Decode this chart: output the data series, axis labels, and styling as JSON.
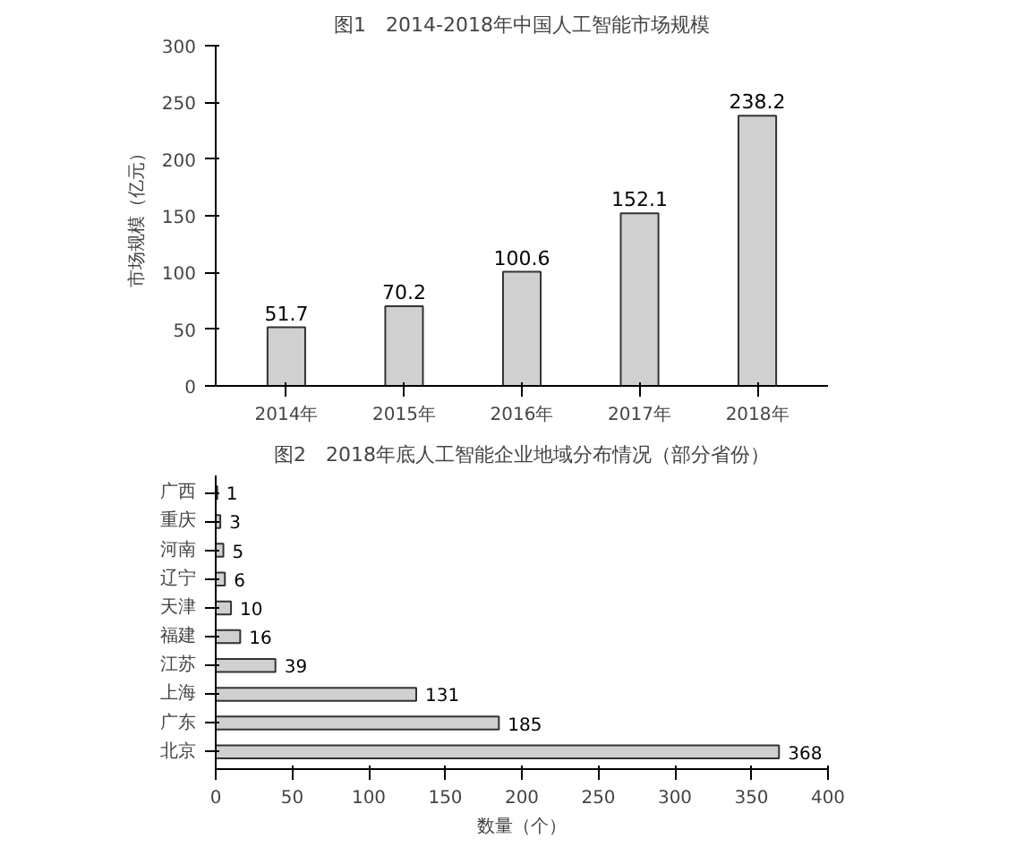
{
  "chart_data": [
    {
      "type": "bar",
      "title": "图1　2014-2018年中国人工智能市场规模",
      "ylabel": "市场规模（亿元）",
      "categories": [
        "2014年",
        "2015年",
        "2016年",
        "2017年",
        "2018年"
      ],
      "values": [
        51.7,
        70.2,
        100.6,
        152.1,
        238.2
      ],
      "color": "#d0d0d0",
      "ylim": [
        0,
        300
      ],
      "yticks": [
        0,
        50,
        100,
        150,
        200,
        250,
        300
      ],
      "data_labels": true,
      "grid": false
    },
    {
      "type": "bar",
      "orientation": "horizontal",
      "title": "图2　2018年底人工智能企业地域分布情况（部分省份）",
      "xlabel": "数量（个）",
      "categories": [
        "广西",
        "重庆",
        "河南",
        "辽宁",
        "天津",
        "福建",
        "江苏",
        "上海",
        "广东",
        "北京"
      ],
      "values": [
        1,
        3,
        5,
        6,
        10,
        16,
        39,
        131,
        185,
        368
      ],
      "color": "#d0d0d0",
      "xlim": [
        0,
        400
      ],
      "xticks": [
        0,
        50,
        100,
        150,
        200,
        250,
        300,
        350,
        400
      ],
      "data_labels": true,
      "grid": false
    }
  ]
}
